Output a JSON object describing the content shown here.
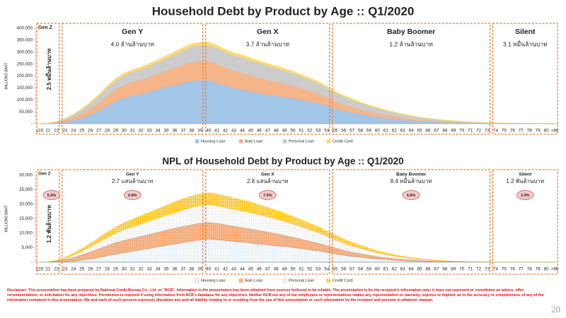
{
  "chart_data": [
    {
      "type": "stacked-area",
      "title": "Household Debt by Product by Age :: Q1/2020",
      "y_label": "MILLIONS BAHT",
      "categories": [
        "≤20",
        "21",
        "22",
        "23",
        "24",
        "25",
        "26",
        "27",
        "28",
        "29",
        "30",
        "31",
        "32",
        "33",
        "34",
        "35",
        "36",
        "37",
        "38",
        "39",
        "40",
        "41",
        "42",
        "43",
        "44",
        "45",
        "46",
        "47",
        "48",
        "49",
        "50",
        "51",
        "52",
        "53",
        "54",
        "55",
        "56",
        "57",
        "58",
        "59",
        "60",
        "61",
        "62",
        "63",
        "64",
        "65",
        "66",
        "67",
        "68",
        "69",
        "70",
        "71",
        "72",
        "73",
        "74",
        "75",
        "76",
        "77",
        "78",
        "79",
        "80",
        ">80"
      ],
      "ylim": [
        0,
        400000
      ],
      "yticks": [
        {
          "value": 0,
          "label": "-"
        },
        {
          "value": 50000,
          "label": "50,000"
        },
        {
          "value": 100000,
          "label": "100,000"
        },
        {
          "value": 150000,
          "label": "150,000"
        },
        {
          "value": 200000,
          "label": "200,000"
        },
        {
          "value": 250000,
          "label": "250,000"
        },
        {
          "value": 300000,
          "label": "300,000"
        },
        {
          "value": 350000,
          "label": "350,000"
        },
        {
          "value": 400000,
          "label": "400,000"
        }
      ],
      "legend": "bottom",
      "series": [
        {
          "name": "Housing Loan",
          "color": "#9dc3e6",
          "values": [
            0,
            1000,
            3000,
            8000,
            15000,
            25000,
            38000,
            55000,
            75000,
            95000,
            108000,
            118000,
            125000,
            135000,
            145000,
            155000,
            163000,
            172000,
            180000,
            183000,
            182000,
            172000,
            160000,
            150000,
            143000,
            135000,
            128000,
            122000,
            117000,
            112000,
            107000,
            100000,
            93000,
            86000,
            76000,
            64000,
            55000,
            47000,
            40000,
            34000,
            29000,
            24000,
            20000,
            16000,
            13000,
            10000,
            8000,
            6500,
            5000,
            4000,
            3000,
            2300,
            1800,
            1300,
            1000,
            800,
            600,
            450,
            350,
            250,
            200,
            600
          ]
        },
        {
          "name": "Auto Loan",
          "color": "#f4b183",
          "values": [
            0,
            500,
            3000,
            7000,
            12000,
            18000,
            25000,
            33000,
            42000,
            50000,
            55000,
            58000,
            60000,
            62000,
            65000,
            68000,
            72000,
            76000,
            78000,
            80000,
            80000,
            78000,
            75000,
            72000,
            70000,
            67000,
            64000,
            61000,
            58000,
            55000,
            52000,
            48000,
            44000,
            40000,
            35000,
            30000,
            26000,
            23000,
            20000,
            17000,
            15000,
            13000,
            11000,
            9000,
            7500,
            6000,
            5000,
            4000,
            3200,
            2500,
            2000,
            1500,
            1200,
            900,
            700,
            500,
            400,
            300,
            200,
            150,
            100,
            300
          ]
        },
        {
          "name": "Personal Loan",
          "color": "#c9c9c9",
          "values": [
            0,
            500,
            2000,
            5000,
            10000,
            16000,
            22000,
            28000,
            33000,
            37000,
            40000,
            42000,
            44000,
            46000,
            48000,
            52000,
            56000,
            60000,
            65000,
            68000,
            68000,
            67000,
            66000,
            65000,
            64000,
            63000,
            62000,
            60000,
            58000,
            55000,
            52000,
            50000,
            47000,
            44000,
            40000,
            36000,
            33000,
            30000,
            27000,
            24000,
            21000,
            18000,
            16000,
            14000,
            12000,
            10000,
            8500,
            7000,
            6000,
            5000,
            4000,
            3200,
            2600,
            2000,
            1500,
            1200,
            900,
            700,
            500,
            400,
            300,
            1000
          ]
        },
        {
          "name": "Credit Card",
          "color": "#ffd966",
          "values": [
            0,
            200,
            800,
            1500,
            2500,
            3500,
            4500,
            5500,
            6500,
            7000,
            7500,
            8000,
            8500,
            9000,
            9500,
            10000,
            10000,
            10500,
            11000,
            11000,
            11000,
            11000,
            10500,
            10500,
            10000,
            10000,
            9500,
            9000,
            9000,
            8500,
            8000,
            7500,
            7000,
            6500,
            6000,
            5000,
            4500,
            4000,
            3500,
            3000,
            2700,
            2300,
            2000,
            1700,
            1400,
            1200,
            1000,
            800,
            650,
            500,
            400,
            300,
            250,
            200,
            150,
            120,
            100,
            80,
            60,
            50,
            40,
            100
          ]
        }
      ],
      "generations": {
        "names": [
          "Gen Z",
          "Gen Y",
          "Gen X",
          "Baby Boomer",
          "Silent"
        ],
        "amounts": [
          "2.5 หมื่นล้านบาท",
          "4.0 ล้านล้านบาท",
          "3.7 ล้านล้านบาท",
          "1.2 ล้านล้านบาท",
          "3.1 หมื่นล้านบาท"
        ]
      }
    },
    {
      "type": "stacked-area",
      "title": "NPL of Household Debt by Product by Age :: Q1/2020",
      "y_label": "MILLIONS BAHT",
      "categories": [
        "≤20",
        "21",
        "22",
        "23",
        "24",
        "25",
        "26",
        "27",
        "28",
        "29",
        "30",
        "31",
        "32",
        "33",
        "34",
        "35",
        "36",
        "37",
        "38",
        "39",
        "40",
        "41",
        "42",
        "43",
        "44",
        "45",
        "46",
        "47",
        "48",
        "49",
        "50",
        "51",
        "52",
        "53",
        "54",
        "55",
        "56",
        "57",
        "58",
        "59",
        "60",
        "61",
        "62",
        "63",
        "64",
        "65",
        "66",
        "67",
        "68",
        "69",
        "70",
        "71",
        "72",
        "73",
        "74",
        "75",
        "76",
        "77",
        "78",
        "79",
        "80",
        ">80"
      ],
      "ylim": [
        0,
        30000
      ],
      "yticks": [
        {
          "value": 0,
          "label": "-"
        },
        {
          "value": 5000,
          "label": "5,000"
        },
        {
          "value": 10000,
          "label": "10,000"
        },
        {
          "value": 15000,
          "label": "15,000"
        },
        {
          "value": 20000,
          "label": "20,000"
        },
        {
          "value": 25000,
          "label": "25,000"
        },
        {
          "value": 30000,
          "label": "30,000"
        }
      ],
      "legend": "bottom",
      "pattern": true,
      "series": [
        {
          "name": "Housing Loan",
          "color": "#5b9bd5",
          "values": [
            0,
            20,
            80,
            200,
            400,
            700,
            1100,
            1600,
            2200,
            2800,
            3300,
            3800,
            4300,
            4800,
            5300,
            5800,
            6300,
            6800,
            7300,
            7700,
            8000,
            7800,
            7500,
            7200,
            6900,
            6600,
            6300,
            6000,
            5700,
            5400,
            5100,
            4700,
            4300,
            3900,
            3400,
            2900,
            2400,
            2000,
            1700,
            1400,
            1100,
            900,
            700,
            550,
            420,
            320,
            240,
            180,
            130,
            100,
            70,
            50,
            40,
            30,
            20,
            15,
            10,
            8,
            6,
            4,
            3,
            10
          ]
        },
        {
          "name": "Auto Loan",
          "color": "#ed7d31",
          "values": [
            0,
            50,
            300,
            700,
            1200,
            1800,
            2400,
            3000,
            3500,
            3900,
            4200,
            4400,
            4600,
            4800,
            5000,
            5200,
            5400,
            5500,
            5600,
            5700,
            5700,
            5600,
            5400,
            5200,
            5000,
            4800,
            4600,
            4400,
            4100,
            3800,
            3500,
            3200,
            2900,
            2600,
            2300,
            2000,
            1700,
            1400,
            1200,
            1000,
            800,
            650,
            500,
            400,
            300,
            230,
            170,
            120,
            90,
            60,
            45,
            30,
            20,
            15,
            10,
            8,
            5,
            4,
            3,
            2,
            1,
            5
          ]
        },
        {
          "name": "Personal Loan",
          "color": "#a5a5a5",
          "values": [
            0,
            30,
            150,
            400,
            800,
            1300,
            1800,
            2300,
            2800,
            3300,
            3700,
            4000,
            4300,
            4600,
            4900,
            5200,
            5500,
            5800,
            6000,
            6200,
            6200,
            6100,
            6000,
            5900,
            5800,
            5700,
            5500,
            5300,
            5100,
            4900,
            4600,
            4300,
            4000,
            3700,
            3300,
            2900,
            2500,
            2200,
            1900,
            1600,
            1300,
            1100,
            900,
            700,
            550,
            420,
            320,
            240,
            180,
            130,
            90,
            60,
            40,
            30,
            20,
            15,
            10,
            7,
            5,
            3,
            2,
            10
          ]
        },
        {
          "name": "Credit Card",
          "color": "#ffc000",
          "values": [
            0,
            20,
            100,
            300,
            600,
            900,
            1200,
            1500,
            1800,
            2100,
            2400,
            2600,
            2800,
            3000,
            3200,
            3400,
            3600,
            3800,
            3900,
            4000,
            4000,
            4000,
            3900,
            3800,
            3700,
            3600,
            3400,
            3200,
            3000,
            2800,
            2600,
            2400,
            2200,
            2000,
            1800,
            1600,
            1400,
            1200,
            1000,
            850,
            700,
            580,
            470,
            380,
            300,
            230,
            180,
            130,
            100,
            70,
            50,
            35,
            25,
            18,
            12,
            8,
            5,
            4,
            3,
            2,
            1,
            4
          ]
        }
      ],
      "generations": {
        "names": [
          "Gen Z",
          "Gen Y",
          "Gen X",
          "Baby Boomer",
          "Silent"
        ],
        "amounts": [
          "1.2 พันล้านบาท",
          "2.7 แสนล้านบาท",
          "2.8 แสนล้านบาท",
          "8.4 หมื่นล้านบาท",
          "1.2 พันล้านบาท"
        ],
        "values": [
          5.0,
          6.8,
          7.4,
          6.8,
          3.9
        ],
        "value_labels": [
          "5.0%",
          "6.8%",
          "7.4%",
          "6.8%",
          "3.9%"
        ]
      }
    }
  ],
  "footer": {
    "disclaimer": "Disclaimer: This presentation has been prepared by National Credit Bureau Co., Ltd. or \"NCB\". Information in the presentation has been obtained from sources believed to be reliable. The presentation is for the recipient's information only; it does not represent or constitutes an advice, offer, recommendation, or solicitation for any objectives. Permission is required if using information from NCB's database for any objectives. Neither NCB nor any of our employees or representatives makes any representation or warranty, express or implied, as to the accuracy or completeness of any of the information contained in this presentation. We and each of such persons expressly disclaims any and all liability relating to or resulting from the use of this presentation or such information by the recipient and persons in whatever manner.",
    "page_number": 20
  }
}
